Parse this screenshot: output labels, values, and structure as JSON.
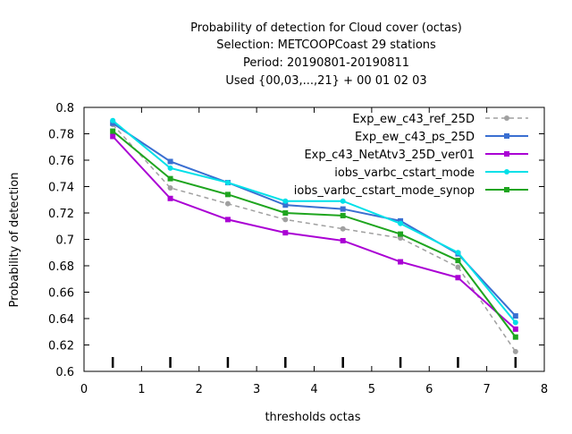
{
  "chart_data": {
    "type": "line",
    "title_lines": [
      "Probability of detection  for Cloud cover (octas)",
      "Selection: METCOOPCoast     29 stations",
      "Period: 20190801-20190811",
      "Used {00,03,...,21} + 00 01 02 03"
    ],
    "xlabel": "thresholds octas",
    "ylabel": "Probability of detection",
    "xlim": [
      0,
      8
    ],
    "ylim": [
      0.6,
      0.8
    ],
    "xticks": [
      0,
      1,
      2,
      3,
      4,
      5,
      6,
      7,
      8
    ],
    "xtick_labels": [
      "0",
      "1",
      "2",
      "3",
      "4",
      "5",
      "6",
      "7",
      "8"
    ],
    "yticks": [
      0.6,
      0.62,
      0.64,
      0.66,
      0.68,
      0.7,
      0.72,
      0.74,
      0.76,
      0.78,
      0.8
    ],
    "ytick_labels": [
      "0.6",
      "0.62",
      "0.64",
      "0.66",
      "0.68",
      "0.7",
      "0.72",
      "0.74",
      "0.76",
      "0.78",
      "0.8"
    ],
    "grid": false,
    "legend_position": "top-right",
    "x": [
      0.5,
      1.5,
      2.5,
      3.5,
      4.5,
      5.5,
      6.5,
      7.5
    ],
    "series": [
      {
        "name": "Exp_ew_c43_ref_25D",
        "color": "#a0a0a0",
        "dashed": true,
        "marker": "circle",
        "values": [
          0.787,
          0.739,
          0.727,
          0.715,
          0.708,
          0.701,
          0.679,
          0.615
        ]
      },
      {
        "name": "Exp_ew_c43_ps_25D",
        "color": "#3a6fd1",
        "dashed": false,
        "marker": "square",
        "values": [
          0.788,
          0.759,
          0.743,
          0.726,
          0.723,
          0.714,
          0.689,
          0.642
        ]
      },
      {
        "name": "Exp_c43_NetAtv3_25D_ver01",
        "color": "#aa00d4",
        "dashed": false,
        "marker": "square",
        "values": [
          0.778,
          0.731,
          0.715,
          0.705,
          0.699,
          0.683,
          0.671,
          0.632
        ]
      },
      {
        "name": "iobs_varbc_cstart_mode",
        "color": "#00e0e8",
        "dashed": false,
        "marker": "circle",
        "values": [
          0.79,
          0.754,
          0.743,
          0.729,
          0.729,
          0.712,
          0.69,
          0.637
        ]
      },
      {
        "name": "iobs_varbc_cstart_mode_synop",
        "color": "#1fa51f",
        "dashed": false,
        "marker": "square",
        "values": [
          0.782,
          0.746,
          0.734,
          0.72,
          0.718,
          0.704,
          0.684,
          0.626
        ]
      }
    ]
  }
}
